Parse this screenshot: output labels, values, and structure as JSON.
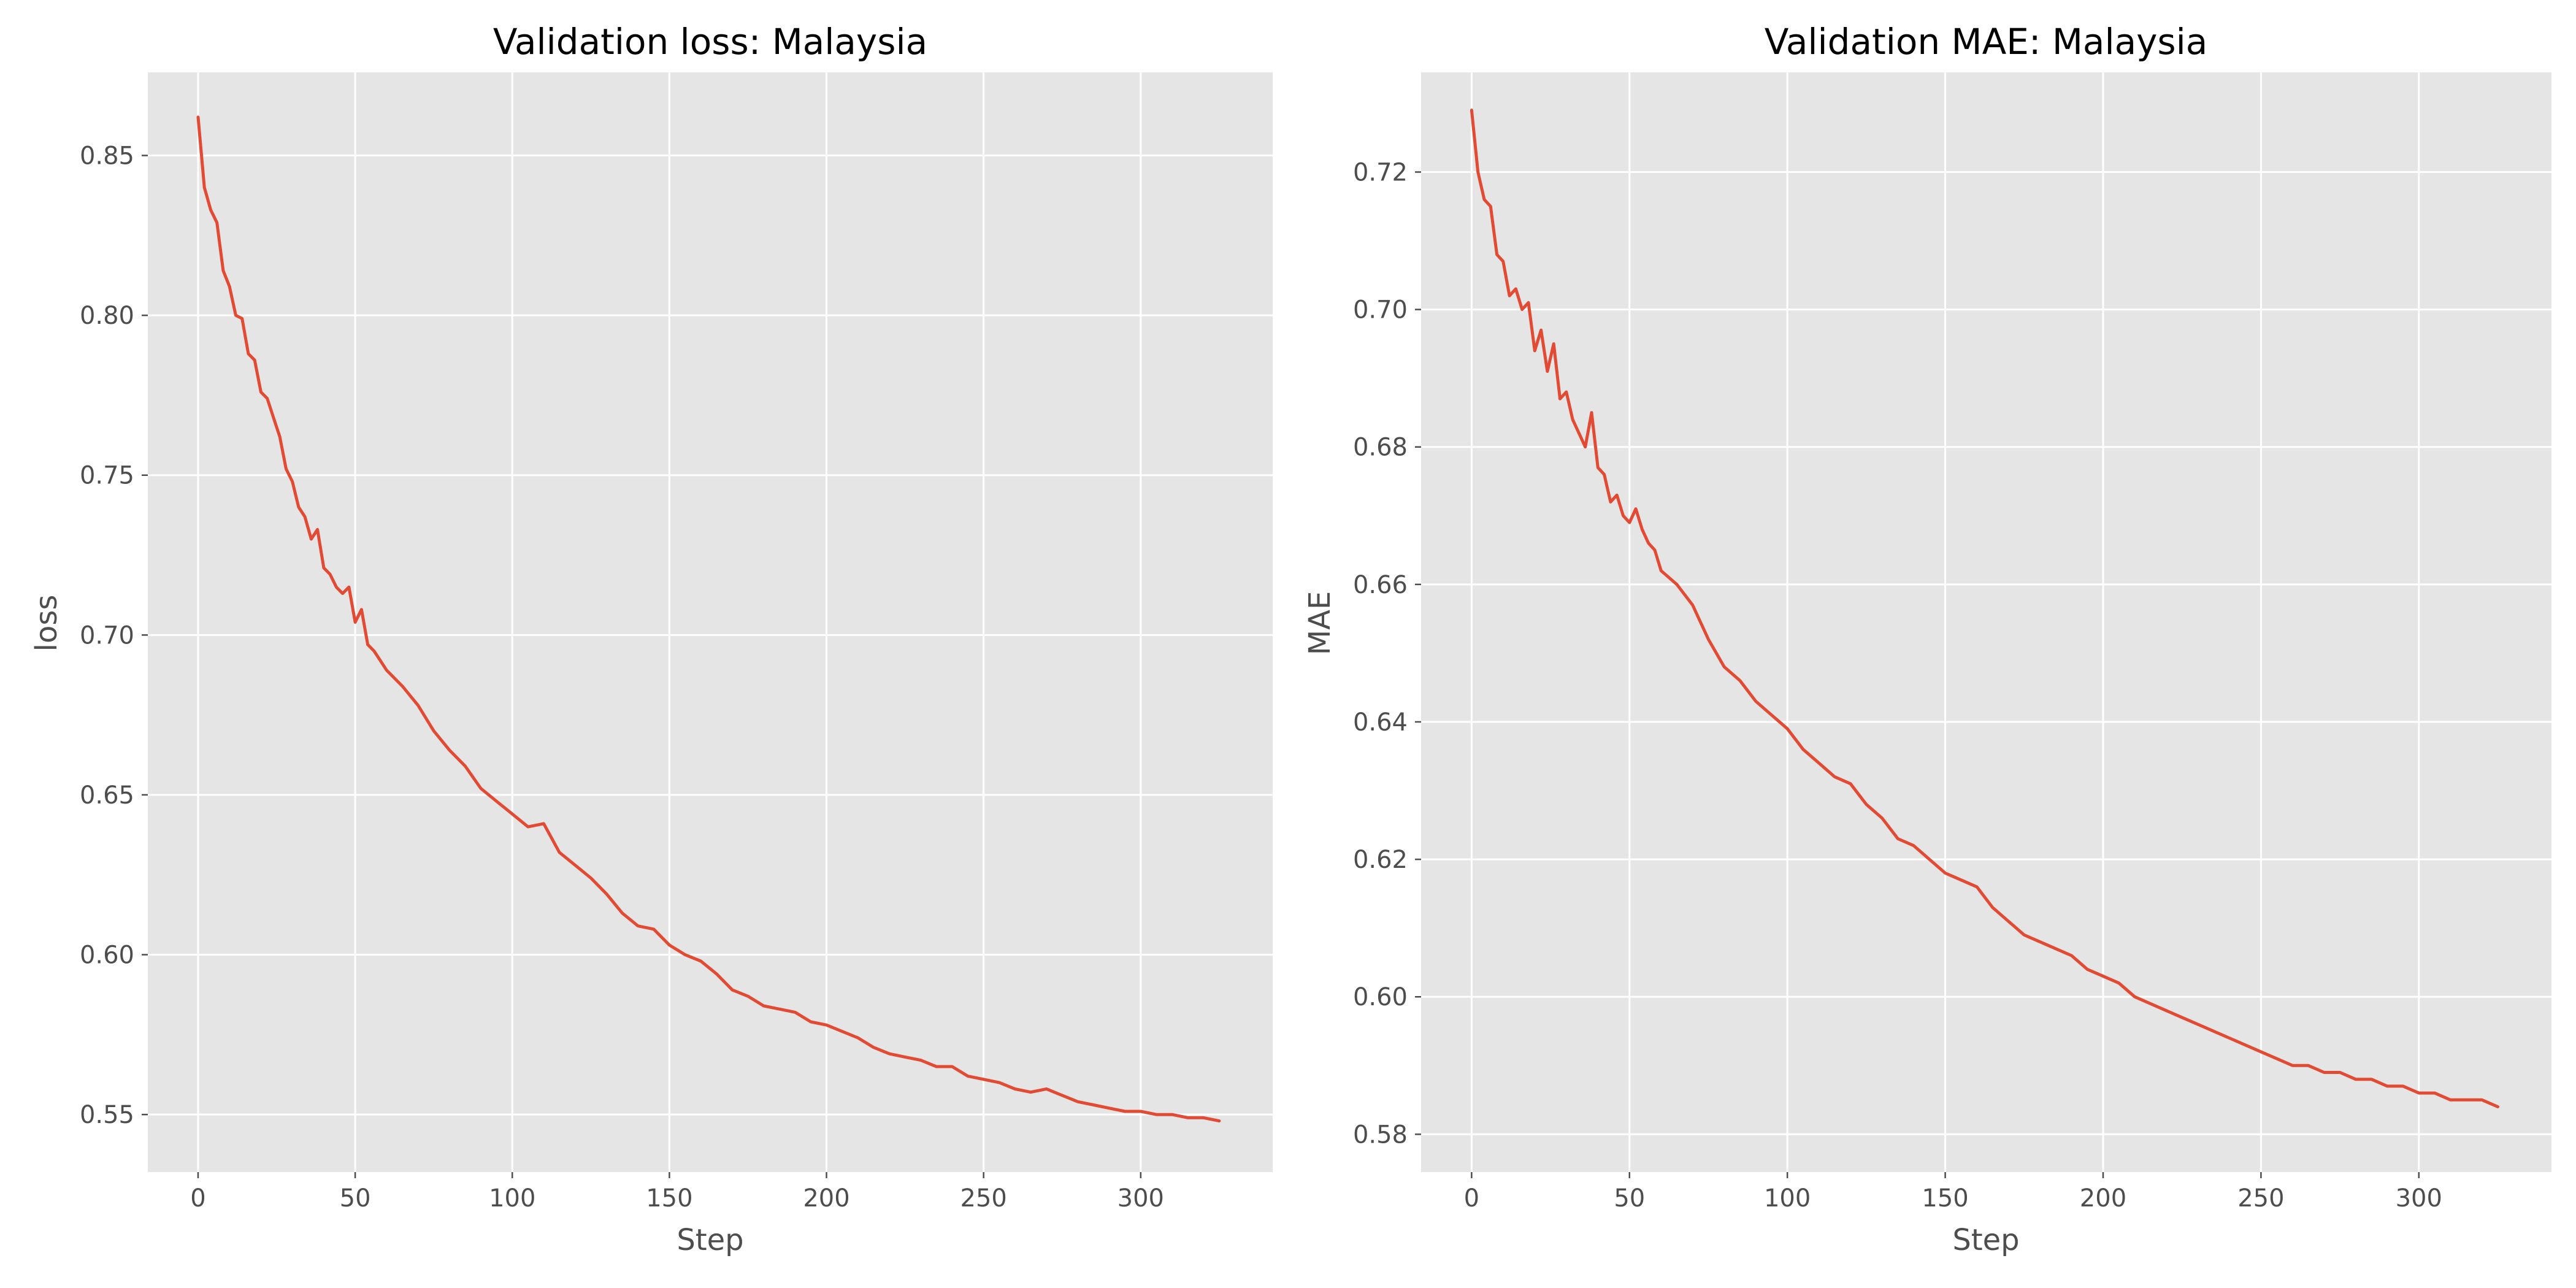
{
  "chart_data": [
    {
      "type": "line",
      "title": "Validation loss: Malaysia",
      "xlabel": "Step",
      "ylabel": "loss",
      "xlim": [
        -16,
        342
      ],
      "ylim": [
        0.532,
        0.876
      ],
      "xticks": [
        0,
        50,
        100,
        150,
        200,
        250,
        300
      ],
      "xtick_labels": [
        "0",
        "50",
        "100",
        "150",
        "200",
        "250",
        "300"
      ],
      "yticks": [
        0.55,
        0.6,
        0.65,
        0.7,
        0.75,
        0.8,
        0.85
      ],
      "ytick_labels": [
        "0.55",
        "0.60",
        "0.65",
        "0.70",
        "0.75",
        "0.80",
        "0.85"
      ],
      "grid": true,
      "series_color": "#e24a33",
      "series": [
        {
          "x": [
            0,
            2,
            4,
            6,
            8,
            10,
            12,
            14,
            16,
            18,
            20,
            22,
            24,
            26,
            28,
            30,
            32,
            34,
            36,
            38,
            40,
            42,
            44,
            46,
            48,
            50,
            52,
            54,
            56,
            58,
            60,
            65,
            70,
            75,
            80,
            85,
            90,
            95,
            100,
            105,
            110,
            115,
            120,
            125,
            130,
            135,
            140,
            145,
            150,
            155,
            160,
            165,
            170,
            175,
            180,
            185,
            190,
            195,
            200,
            205,
            210,
            215,
            220,
            225,
            230,
            235,
            240,
            245,
            250,
            255,
            260,
            265,
            270,
            275,
            280,
            285,
            290,
            295,
            300,
            305,
            310,
            315,
            320,
            325
          ],
          "y": [
            0.862,
            0.84,
            0.833,
            0.829,
            0.814,
            0.809,
            0.8,
            0.799,
            0.788,
            0.786,
            0.776,
            0.774,
            0.768,
            0.762,
            0.752,
            0.748,
            0.74,
            0.737,
            0.73,
            0.733,
            0.721,
            0.719,
            0.715,
            0.713,
            0.715,
            0.704,
            0.708,
            0.697,
            0.695,
            0.692,
            0.689,
            0.684,
            0.678,
            0.67,
            0.664,
            0.659,
            0.652,
            0.648,
            0.644,
            0.64,
            0.641,
            0.632,
            0.628,
            0.624,
            0.619,
            0.613,
            0.609,
            0.608,
            0.603,
            0.6,
            0.598,
            0.594,
            0.589,
            0.587,
            0.584,
            0.583,
            0.582,
            0.579,
            0.578,
            0.576,
            0.574,
            0.571,
            0.569,
            0.568,
            0.567,
            0.565,
            0.565,
            0.562,
            0.561,
            0.56,
            0.558,
            0.557,
            0.558,
            0.556,
            0.554,
            0.553,
            0.552,
            0.551,
            0.551,
            0.55,
            0.55,
            0.549,
            0.549,
            0.548
          ]
        }
      ]
    },
    {
      "type": "line",
      "title": "Validation MAE: Malaysia",
      "xlabel": "Step",
      "ylabel": "MAE",
      "xlim": [
        -16,
        342
      ],
      "ylim": [
        0.5745,
        0.7345
      ],
      "xticks": [
        0,
        50,
        100,
        150,
        200,
        250,
        300
      ],
      "xtick_labels": [
        "0",
        "50",
        "100",
        "150",
        "200",
        "250",
        "300"
      ],
      "yticks": [
        0.58,
        0.6,
        0.62,
        0.64,
        0.66,
        0.68,
        0.7,
        0.72
      ],
      "ytick_labels": [
        "0.58",
        "0.60",
        "0.62",
        "0.64",
        "0.66",
        "0.68",
        "0.70",
        "0.72"
      ],
      "grid": true,
      "series_color": "#e24a33",
      "series": [
        {
          "x": [
            0,
            2,
            4,
            6,
            8,
            10,
            12,
            14,
            16,
            18,
            20,
            22,
            24,
            26,
            28,
            30,
            32,
            34,
            36,
            38,
            40,
            42,
            44,
            46,
            48,
            50,
            52,
            54,
            56,
            58,
            60,
            65,
            70,
            75,
            80,
            85,
            90,
            95,
            100,
            105,
            110,
            115,
            120,
            125,
            130,
            135,
            140,
            145,
            150,
            155,
            160,
            165,
            170,
            175,
            180,
            185,
            190,
            195,
            200,
            205,
            210,
            215,
            220,
            225,
            230,
            235,
            240,
            245,
            250,
            255,
            260,
            265,
            270,
            275,
            280,
            285,
            290,
            295,
            300,
            305,
            310,
            315,
            320,
            325
          ],
          "y": [
            0.729,
            0.72,
            0.716,
            0.715,
            0.708,
            0.707,
            0.702,
            0.703,
            0.7,
            0.701,
            0.694,
            0.697,
            0.691,
            0.695,
            0.687,
            0.688,
            0.684,
            0.682,
            0.68,
            0.685,
            0.677,
            0.676,
            0.672,
            0.673,
            0.67,
            0.669,
            0.671,
            0.668,
            0.666,
            0.665,
            0.662,
            0.66,
            0.657,
            0.652,
            0.648,
            0.646,
            0.643,
            0.641,
            0.639,
            0.636,
            0.634,
            0.632,
            0.631,
            0.628,
            0.626,
            0.623,
            0.622,
            0.62,
            0.618,
            0.617,
            0.616,
            0.613,
            0.611,
            0.609,
            0.608,
            0.607,
            0.606,
            0.604,
            0.603,
            0.602,
            0.6,
            0.599,
            0.598,
            0.597,
            0.596,
            0.595,
            0.594,
            0.593,
            0.592,
            0.591,
            0.59,
            0.59,
            0.589,
            0.589,
            0.588,
            0.588,
            0.587,
            0.587,
            0.586,
            0.586,
            0.585,
            0.585,
            0.585,
            0.584
          ]
        }
      ]
    }
  ]
}
